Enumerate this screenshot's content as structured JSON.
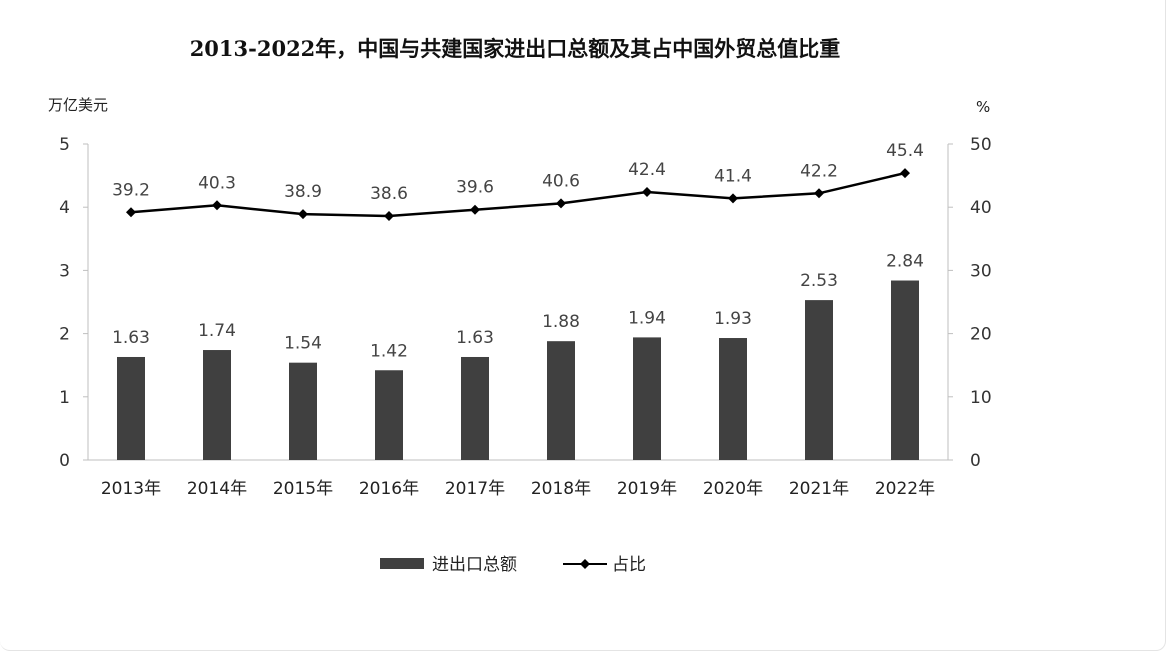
{
  "chart_data": {
    "type": "bar",
    "title": "2013-2022年，中国与共建国家进出口总额及其占中国外贸总值比重",
    "left_axis_label": "万亿美元",
    "right_axis_label": "%",
    "categories": [
      "2013年",
      "2014年",
      "2015年",
      "2016年",
      "2017年",
      "2018年",
      "2019年",
      "2020年",
      "2021年",
      "2022年"
    ],
    "series": [
      {
        "name": "进出口总额",
        "type": "bar",
        "axis": "left",
        "color": "#404040",
        "values": [
          1.63,
          1.74,
          1.54,
          1.42,
          1.63,
          1.88,
          1.94,
          1.93,
          2.53,
          2.84
        ],
        "labels": [
          "1.63",
          "1.74",
          "1.54",
          "1.42",
          "1.63",
          "1.88",
          "1.94",
          "1.93",
          "2.53",
          "2.84"
        ]
      },
      {
        "name": "占比",
        "type": "line",
        "axis": "right",
        "color": "#000000",
        "marker": "diamond",
        "values": [
          39.2,
          40.3,
          38.9,
          38.6,
          39.6,
          40.6,
          42.4,
          41.4,
          42.2,
          45.4
        ],
        "labels": [
          "39.2",
          "40.3",
          "38.9",
          "38.6",
          "39.6",
          "40.6",
          "42.4",
          "41.4",
          "42.2",
          "45.4"
        ]
      }
    ],
    "left_ylim": [
      0,
      5
    ],
    "left_ticks": [
      "0",
      "1",
      "2",
      "3",
      "4",
      "5"
    ],
    "right_ylim": [
      0,
      50
    ],
    "right_ticks": [
      "0",
      "10",
      "20",
      "30",
      "40",
      "50"
    ],
    "grid": false,
    "legend_position": "bottom-center"
  }
}
